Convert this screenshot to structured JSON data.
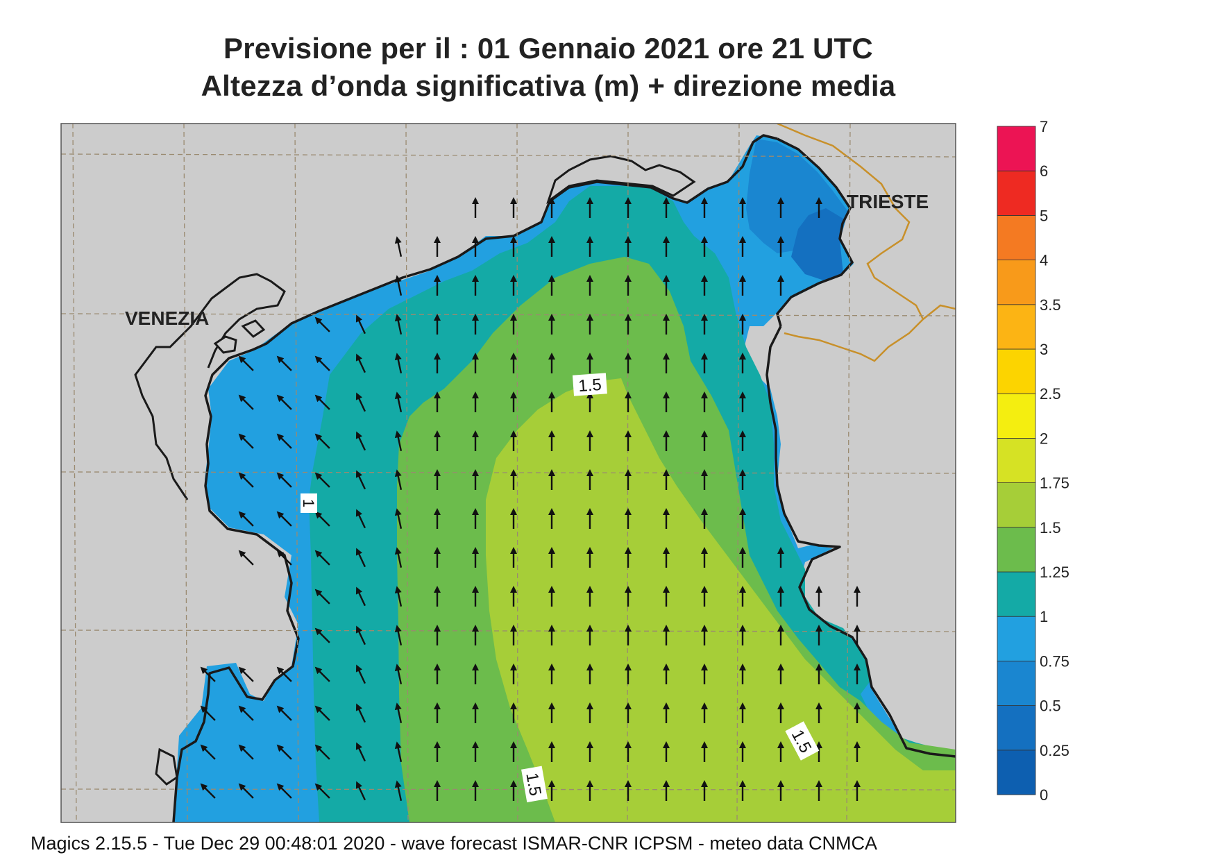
{
  "title": {
    "line1": "Previsione per il  :  01  Gennaio  2021   ore 21 UTC",
    "line2": "Altezza d’onda significativa (m) + direzione media"
  },
  "map": {
    "place_labels": [
      "VENEZIA",
      "TRIESTE"
    ],
    "contour_labels": [
      "1",
      "1.5",
      "1.5",
      "1.5"
    ],
    "land_color": "#cccccc",
    "coast_color": "#1a1a1a",
    "border_color": "#c8902a",
    "arrow_direction": "north (northwest near the Venetian coast)",
    "arrow_color": "#111111"
  },
  "legend": {
    "colorbar": [
      {
        "value": "0",
        "color": "#0d5fb0"
      },
      {
        "value": "0.25",
        "color": "#1470c0"
      },
      {
        "value": "0.5",
        "color": "#1a86d0"
      },
      {
        "value": "0.75",
        "color": "#22a0e0"
      },
      {
        "value": "1",
        "color": "#14aaa6"
      },
      {
        "value": "1.25",
        "color": "#6cbc4c"
      },
      {
        "value": "1.5",
        "color": "#a6ce38"
      },
      {
        "value": "1.75",
        "color": "#d6e224"
      },
      {
        "value": "2",
        "color": "#f4ee10"
      },
      {
        "value": "2.5",
        "color": "#fcd400"
      },
      {
        "value": "3",
        "color": "#fcb414"
      },
      {
        "value": "3.5",
        "color": "#f89a1a"
      },
      {
        "value": "4",
        "color": "#f47a22"
      },
      {
        "value": "5",
        "color": "#ee2a22"
      },
      {
        "value": "6",
        "color": "#ec1454"
      },
      {
        "value": "7",
        "color": ""
      }
    ]
  },
  "footer": "Magics 2.15.5 - Tue Dec 29 00:48:01 2020 - wave forecast  ISMAR-CNR  ICPSM - meteo data   CNMCA"
}
